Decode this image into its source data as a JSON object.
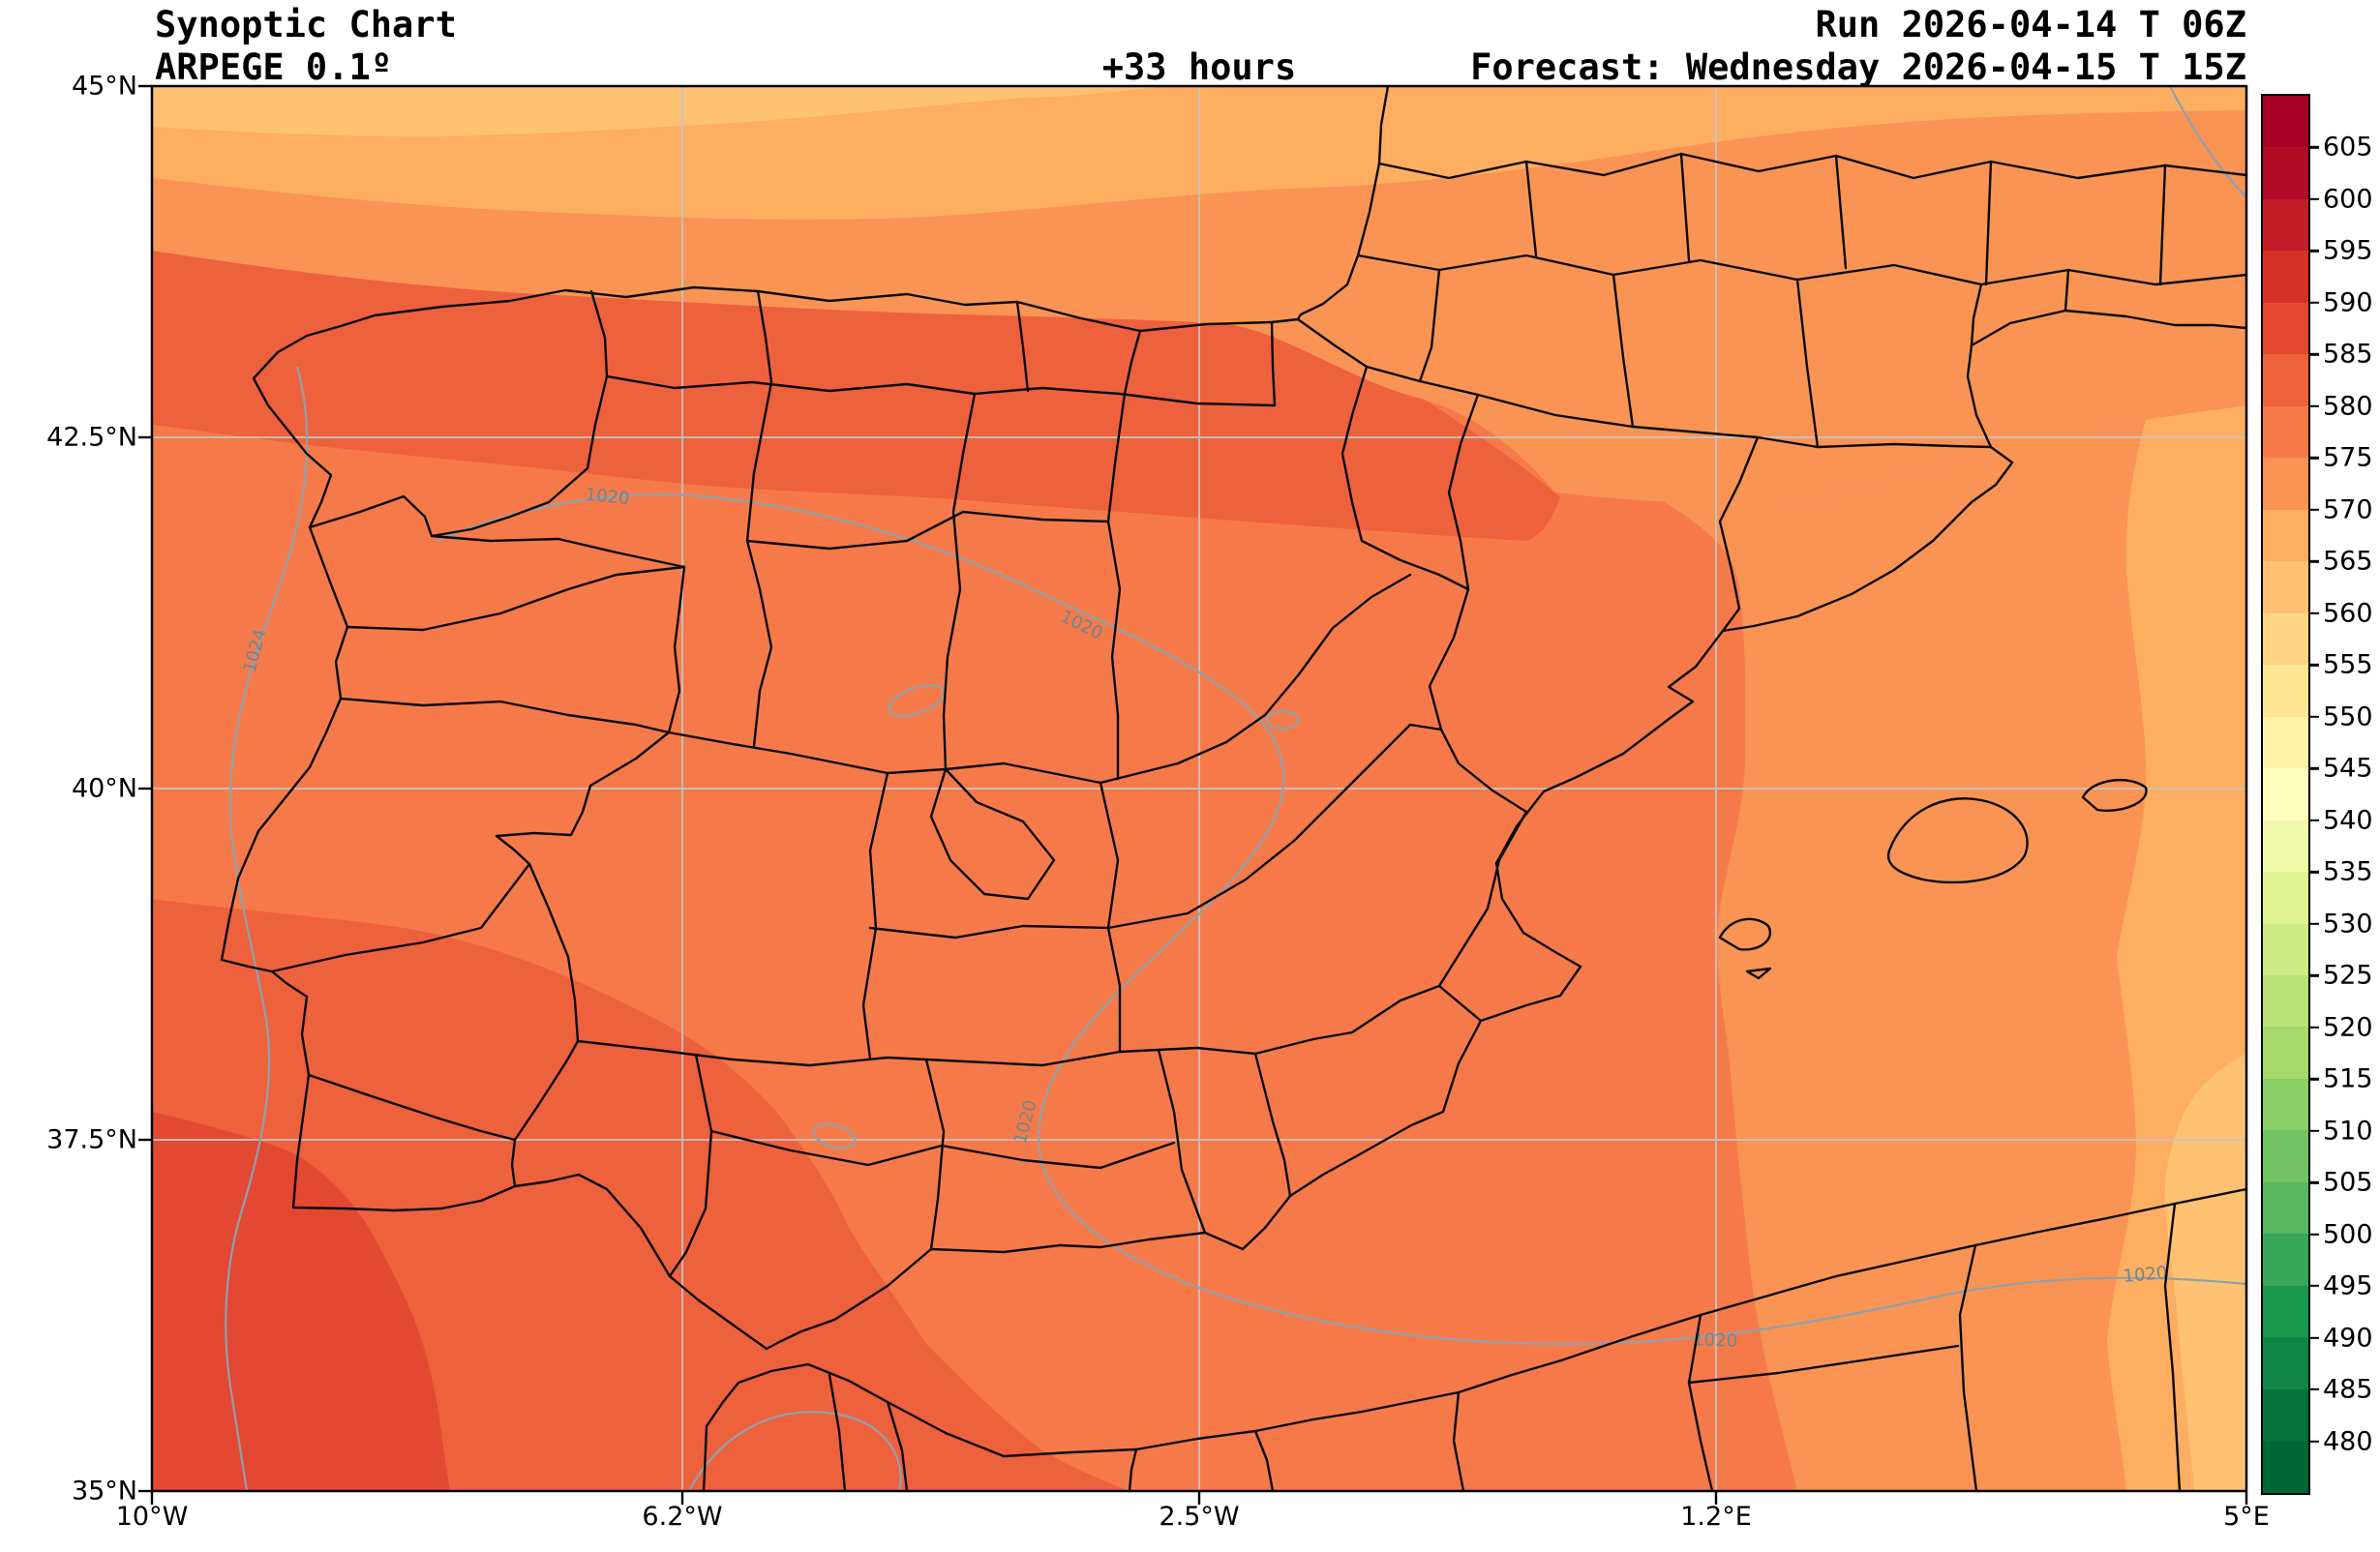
{
  "header": {
    "title": "Synoptic Chart",
    "model": "ARPEGE 0.1º",
    "lead_time": "+33 hours",
    "run": "Run 2026-04-14 T 06Z",
    "forecast": "Forecast: Wednesday 2026-04-15 T 15Z"
  },
  "map": {
    "x_tick_labels": [
      "10°W",
      "6.2°W",
      "2.5°W",
      "1.2°E",
      "5°E"
    ],
    "y_tick_labels": [
      "45°N",
      "42.5°N",
      "40°N",
      "37.5°N",
      "35°N"
    ],
    "isobar_labels": [
      "1024",
      "1020",
      "1020",
      "1020",
      "1020",
      "1020"
    ]
  },
  "colorbar": {
    "tick_labels": [
      "605",
      "600",
      "595",
      "590",
      "585",
      "580",
      "575",
      "570",
      "565",
      "560",
      "555",
      "550",
      "545",
      "540",
      "535",
      "530",
      "525",
      "520",
      "515",
      "510",
      "505",
      "500",
      "495",
      "490",
      "485",
      "480"
    ],
    "segment_colors": [
      "#a50026",
      "#af0a26",
      "#c31d27",
      "#d73027",
      "#e34832",
      "#ee613d",
      "#f67a49",
      "#f99455",
      "#fdae61",
      "#fec272",
      "#fed683",
      "#fee695",
      "#fff3aa",
      "#ffffbf",
      "#f0f9aa",
      "#e1f295",
      "#cfeb84",
      "#bae277",
      "#a6d96a",
      "#8cce67",
      "#73c364",
      "#57b65f",
      "#38a758",
      "#1a9850",
      "#108546",
      "#05723c",
      "#006837"
    ]
  },
  "chart_data": {
    "type": "heatmap",
    "title": "Synoptic Chart",
    "model": "ARPEGE 0.1º",
    "lead_hours": 33,
    "run_label": "Run 2026-04-14 T 06Z",
    "forecast_label": "Forecast: Wednesday 2026-04-15 T 15Z",
    "x_ticks": [
      "10°W",
      "6.2°W",
      "2.5°W",
      "1.2°E",
      "5°E"
    ],
    "y_ticks": [
      "45°N",
      "42.5°N",
      "40°N",
      "37.5°N",
      "35°N"
    ],
    "lon_range": [
      -10,
      5
    ],
    "lat_range": [
      35,
      45
    ],
    "colorbar_range": [
      480,
      605
    ],
    "colorbar_step": 5,
    "isobar_values_shown": [
      1024,
      1020
    ],
    "grid": true,
    "legend_position": "right",
    "field_band_colors": {
      "560-565": "#fec272",
      "565-570": "#fdae61",
      "570-575": "#f99455",
      "575-580": "#f67a49",
      "580-585": "#ee613d",
      "585-590": "#e34832"
    }
  }
}
